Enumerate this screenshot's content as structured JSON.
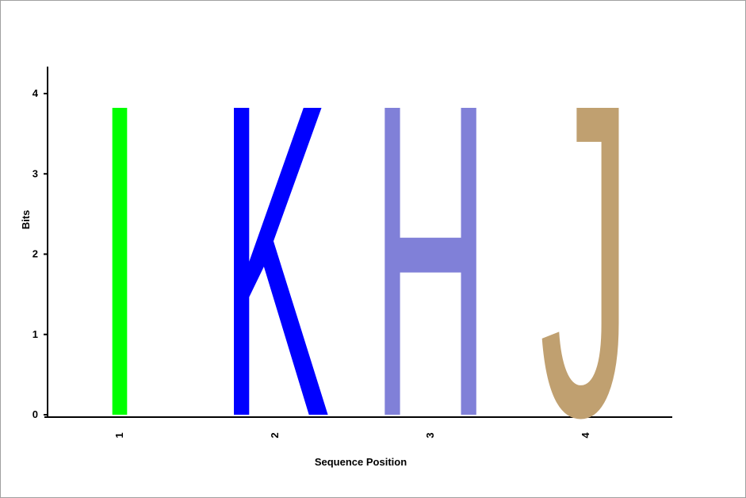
{
  "chart_data": {
    "type": "sequence-logo",
    "xlabel": "Sequence Position",
    "ylabel": "Bits",
    "ylim": [
      0,
      4
    ],
    "yticks": [
      "0",
      "1",
      "2",
      "3",
      "4"
    ],
    "positions": [
      {
        "label": "1",
        "letter": "I",
        "bits": 4.0,
        "color": "#00ff00"
      },
      {
        "label": "2",
        "letter": "K",
        "bits": 4.0,
        "color": "#0000ff"
      },
      {
        "label": "3",
        "letter": "H",
        "bits": 4.0,
        "color": "#8080d8"
      },
      {
        "label": "4",
        "letter": "J",
        "bits": 4.0,
        "color": "#c0a070"
      }
    ],
    "grid": false,
    "legend": "none"
  }
}
